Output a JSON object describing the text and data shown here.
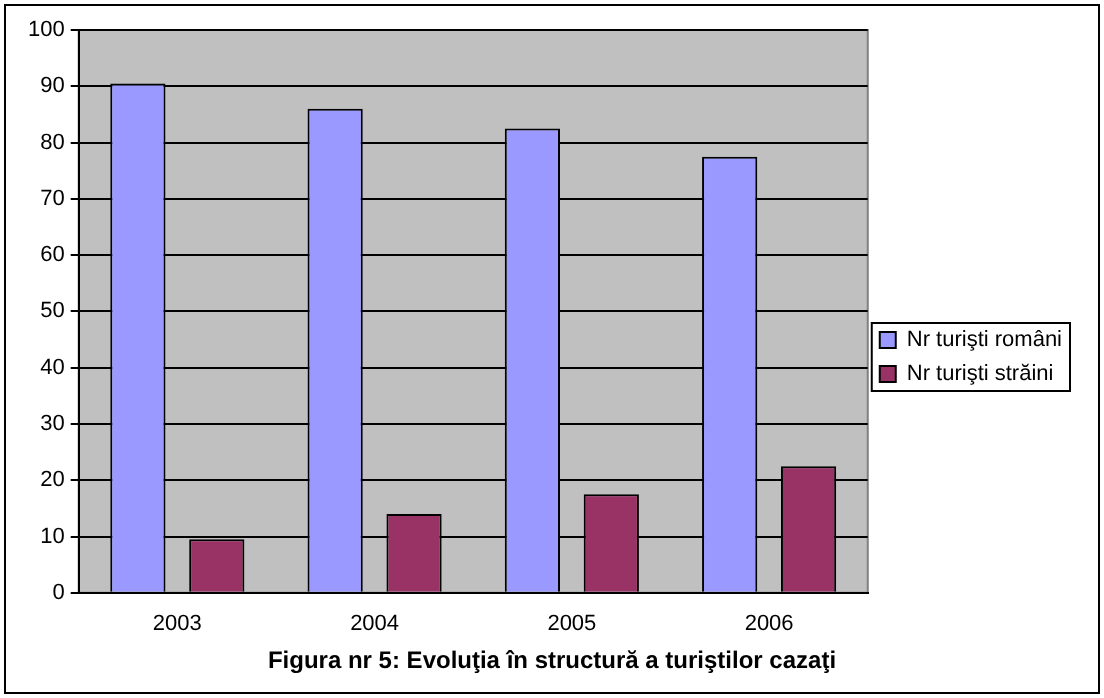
{
  "chart_data": {
    "type": "bar",
    "title": "Figura nr 5: Evoluţia în structură a turiştilor cazaţi",
    "categories": [
      "2003",
      "2004",
      "2005",
      "2006"
    ],
    "series": [
      {
        "name": "Nr turişti români",
        "color": "#9999ff",
        "values": [
          90.5,
          86,
          82.5,
          77.5
        ]
      },
      {
        "name": "Nr turişti străini",
        "color": "#993366",
        "values": [
          9.5,
          14,
          17.5,
          22.5
        ]
      }
    ],
    "ylim": [
      0,
      100
    ],
    "yticks": [
      0,
      10,
      20,
      30,
      40,
      50,
      60,
      70,
      80,
      90,
      100
    ],
    "grid": "y",
    "legend": "right"
  }
}
